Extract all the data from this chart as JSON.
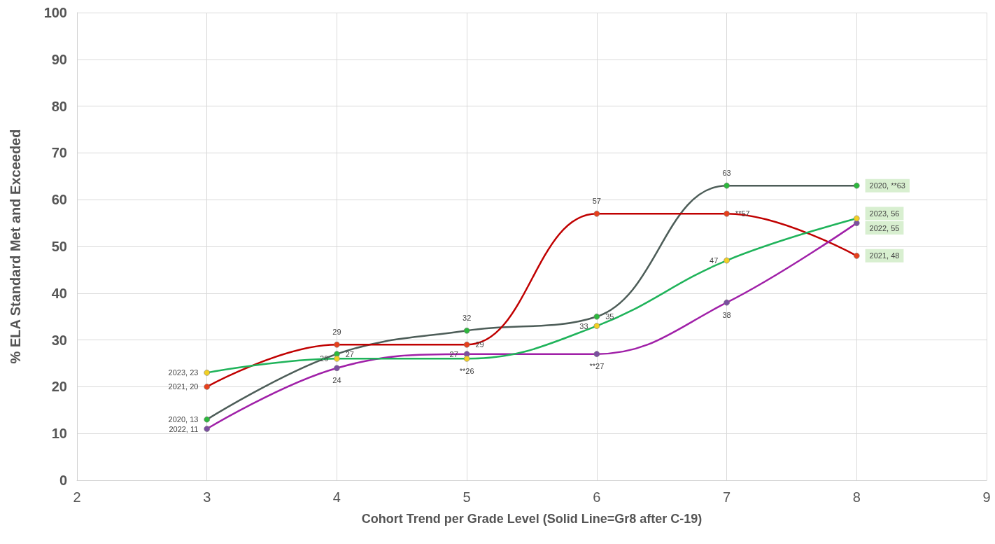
{
  "chart_data": {
    "type": "line",
    "xlabel": "Cohort Trend per Grade Level (Solid Line=Gr8 after C-19)",
    "ylabel": "% ELA Standard Met and Exceeded",
    "x": [
      3,
      4,
      5,
      6,
      7,
      8
    ],
    "series": [
      {
        "color": "#4d5d58",
        "colors": [
          "#2db83d",
          "#2db83d",
          "#2db83d",
          "#2db83d",
          "#2db83d",
          "#2db83d"
        ],
        "values": [
          13,
          27,
          32,
          35,
          63,
          63
        ],
        "value_labels": [
          "2020, 13",
          "27",
          "32",
          "35",
          "63",
          "2020, **63"
        ]
      },
      {
        "color": "#c00000",
        "colors": [
          "#e8401c",
          "#e8401c",
          "#e8401c",
          "#e8401c",
          "#e8401c",
          "#e8401c"
        ],
        "values": [
          20,
          29,
          29,
          57,
          57,
          48
        ],
        "value_labels": [
          "2021, 20",
          "29",
          "29",
          "57",
          "**57",
          "2021, 48"
        ]
      },
      {
        "color": "#a020a8",
        "colors": [
          "#7b4fa0",
          "#7b4fa0",
          "#7b4fa0",
          "#7b4fa0",
          "#7b4fa0",
          "#7b4fa0"
        ],
        "values": [
          11,
          24,
          27,
          27,
          38,
          55
        ],
        "value_labels": [
          "2022, 11",
          "24",
          "27",
          "**27",
          "38",
          "2022, 55"
        ]
      },
      {
        "color": "#1fb35a",
        "colors": [
          "#f2d024",
          "#f2d024",
          "#f2d024",
          "#f2d024",
          "#f2d024",
          "#f2d024"
        ],
        "values": [
          23,
          26,
          26,
          33,
          47,
          56
        ],
        "value_labels": [
          "2023, 23",
          "26",
          "**26",
          "33",
          "47",
          "2023, 56"
        ]
      }
    ],
    "xlim": [
      2,
      9
    ],
    "xticks": [
      2,
      3,
      4,
      5,
      6,
      7,
      8,
      9
    ],
    "ylim": [
      0,
      100
    ],
    "yticks": [
      0,
      10,
      20,
      30,
      40,
      50,
      60,
      70,
      80,
      90,
      100
    ],
    "grid": true,
    "marker": "circle",
    "line_style": "solid"
  }
}
